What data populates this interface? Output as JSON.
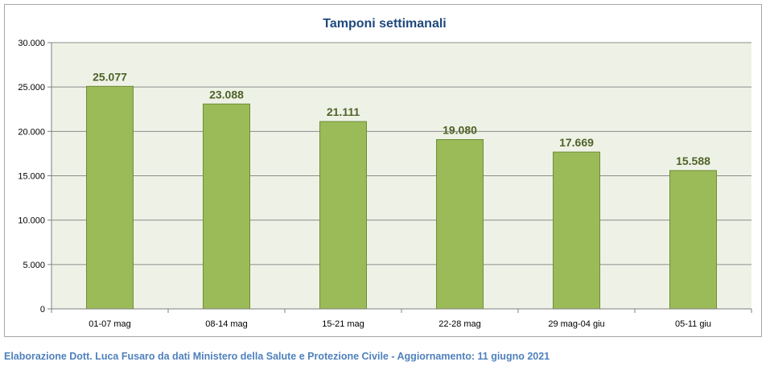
{
  "chart_data": {
    "type": "bar",
    "title": "Tamponi settimanali",
    "categories": [
      "01-07 mag",
      "08-14 mag",
      "15-21 mag",
      "22-28 mag",
      "29 mag-04 giu",
      "05-11 giu"
    ],
    "values": [
      25077,
      23088,
      21111,
      19080,
      17669,
      15588
    ],
    "value_labels": [
      "25.077",
      "23.088",
      "21.111",
      "19.080",
      "17.669",
      "15.588"
    ],
    "yticks": [
      "0",
      "5.000",
      "10.000",
      "15.000",
      "20.000",
      "25.000",
      "30.000"
    ],
    "ylim": [
      0,
      30000
    ],
    "ystep": 5000,
    "grid": true,
    "legend": "none",
    "colors": {
      "bar_fill": "#9bbb59",
      "bar_stroke": "#6e8c37",
      "plot_bg": "#eef2e6",
      "grid": "#8c8c8c",
      "title": "#1f497d",
      "value_label": "#4f6228"
    }
  },
  "footer": {
    "note": "Elaborazione Dott. Luca Fusaro da dati Ministero della Salute e Protezione Civile - Aggiornamento: 11 giugno 2021"
  }
}
